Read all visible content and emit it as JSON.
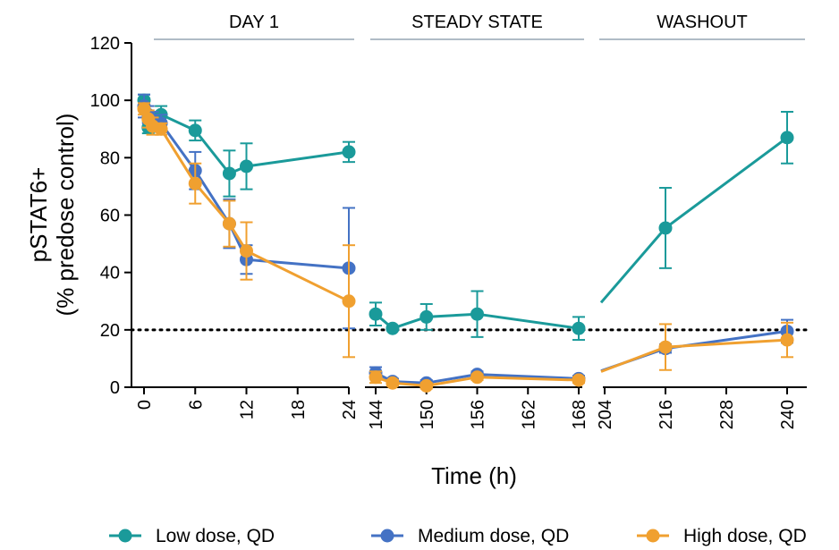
{
  "chart_data": {
    "type": "line",
    "ylabel_line1": "pSTAT6+",
    "ylabel_line2": "(% predose control)",
    "xlabel": "Time (h)",
    "ylim": [
      0,
      120
    ],
    "yticks": [
      0,
      20,
      40,
      60,
      80,
      100,
      120
    ],
    "ytick_labels": [
      "0",
      "20",
      "40",
      "60",
      "80",
      "100",
      "120"
    ],
    "reference_line": {
      "y": 20,
      "style": "dotted"
    },
    "panels": [
      {
        "title": "DAY 1",
        "xlim": [
          0,
          24
        ],
        "xticks": [
          0,
          6,
          12,
          18,
          24
        ],
        "xtick_labels": [
          "0",
          "6",
          "12",
          "18",
          "24"
        ]
      },
      {
        "title": "STEADY STATE",
        "xlim": [
          144,
          168
        ],
        "xticks": [
          144,
          150,
          156,
          162,
          168
        ],
        "xtick_labels": [
          "144",
          "150",
          "156",
          "162",
          "168"
        ]
      },
      {
        "title": "WASHOUT",
        "xlim": [
          204,
          240
        ],
        "xticks": [
          204,
          216,
          228,
          240
        ],
        "xtick_labels": [
          "204",
          "216",
          "228",
          "240"
        ]
      }
    ],
    "series": [
      {
        "name": "Low dose, QD",
        "color": "#1a9a9a",
        "segments": [
          [
            {
              "x": 0,
              "y": 100,
              "err": 2
            },
            {
              "x": 0.5,
              "y": 90.5,
              "err": 2
            },
            {
              "x": 1,
              "y": 92,
              "err": 3
            },
            {
              "x": 2,
              "y": 95,
              "err": 3
            },
            {
              "x": 6,
              "y": 89.5,
              "err": 3.5
            },
            {
              "x": 10,
              "y": 74.5,
              "err": 8
            },
            {
              "x": 12,
              "y": 77,
              "err": 8
            },
            {
              "x": 24,
              "y": 82,
              "err": 3.5
            }
          ],
          [
            {
              "x": 144,
              "y": 25.5,
              "err": 4
            },
            {
              "x": 146,
              "y": 20.5,
              "err": 0
            },
            {
              "x": 150,
              "y": 24.5,
              "err": 4.5
            },
            {
              "x": 156,
              "y": 25.5,
              "err": 8
            },
            {
              "x": 168,
              "y": 20.5,
              "err": 4
            }
          ],
          [
            {
              "x": 216,
              "y": 55.5,
              "err": 14
            },
            {
              "x": 240,
              "y": 87,
              "err": 9
            }
          ]
        ]
      },
      {
        "name": "Medium dose, QD",
        "color": "#4472c4",
        "segments": [
          [
            {
              "x": 0,
              "y": 98,
              "err": 4
            },
            {
              "x": 0.5,
              "y": 95,
              "err": 3
            },
            {
              "x": 1,
              "y": 93,
              "err": 3
            },
            {
              "x": 2,
              "y": 92,
              "err": 3
            },
            {
              "x": 6,
              "y": 75.5,
              "err": 6.5
            },
            {
              "x": 10,
              "y": 57,
              "err": 8.5
            },
            {
              "x": 12,
              "y": 44.5,
              "err": 5
            },
            {
              "x": 24,
              "y": 41.5,
              "err": 21
            }
          ],
          [
            {
              "x": 144,
              "y": 5,
              "err": 2
            },
            {
              "x": 146,
              "y": 2,
              "err": 1
            },
            {
              "x": 150,
              "y": 1.5,
              "err": 1
            },
            {
              "x": 156,
              "y": 4.5,
              "err": 1
            },
            {
              "x": 168,
              "y": 3,
              "err": 1
            }
          ],
          [
            {
              "x": 216,
              "y": 13.5,
              "err": 1.5
            },
            {
              "x": 240,
              "y": 19.5,
              "err": 4
            }
          ]
        ]
      },
      {
        "name": "High dose, QD",
        "color": "#f0a030",
        "segments": [
          [
            {
              "x": 0,
              "y": 97,
              "err": 2
            },
            {
              "x": 0.5,
              "y": 93.5,
              "err": 3
            },
            {
              "x": 1,
              "y": 91,
              "err": 3
            },
            {
              "x": 2,
              "y": 90,
              "err": 2
            },
            {
              "x": 6,
              "y": 71,
              "err": 7
            },
            {
              "x": 10,
              "y": 57,
              "err": 8
            },
            {
              "x": 12,
              "y": 47.5,
              "err": 10
            },
            {
              "x": 24,
              "y": 30,
              "err": 19.5
            }
          ],
          [
            {
              "x": 144,
              "y": 3.5,
              "err": 2
            },
            {
              "x": 146,
              "y": 1.5,
              "err": 1
            },
            {
              "x": 150,
              "y": 0.5,
              "err": 1
            },
            {
              "x": 156,
              "y": 3.5,
              "err": 1
            },
            {
              "x": 168,
              "y": 2.5,
              "err": 1
            }
          ],
          [
            {
              "x": 216,
              "y": 14,
              "err": 8
            },
            {
              "x": 240,
              "y": 16.5,
              "err": 6
            }
          ]
        ]
      }
    ],
    "legend_position": "bottom"
  }
}
